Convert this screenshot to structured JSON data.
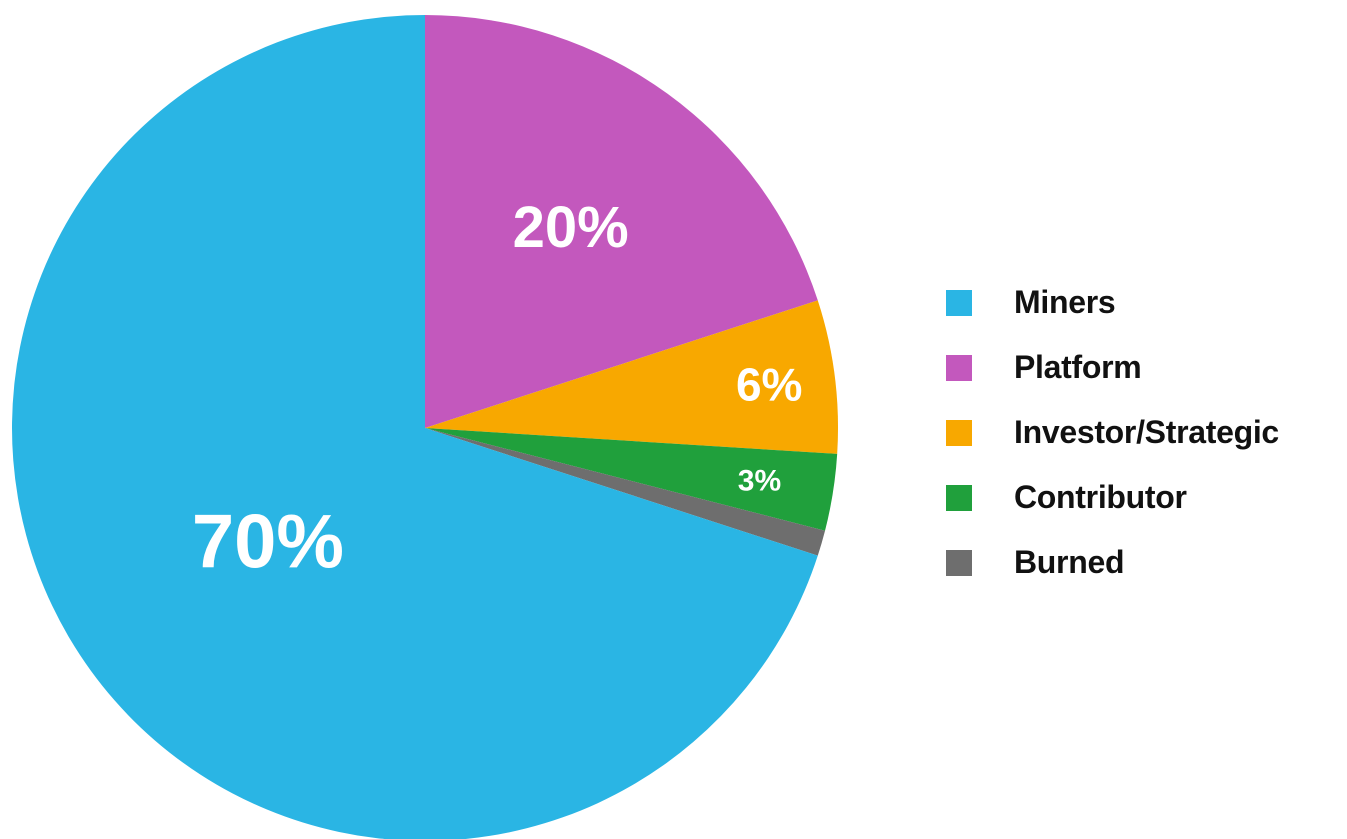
{
  "chart_data": {
    "type": "pie",
    "title": "",
    "start_angle_deg": 0,
    "direction": "clockwise",
    "legend_position": "right",
    "slices": [
      {
        "name": "Platform",
        "value": 20,
        "label": "20%",
        "color": "#c358bd"
      },
      {
        "name": "Investor/Strategic",
        "value": 6,
        "label": "6%",
        "color": "#f8a800"
      },
      {
        "name": "Contributor",
        "value": 3,
        "label": "3%",
        "color": "#20a03c"
      },
      {
        "name": "Burned",
        "value": 1,
        "label": "",
        "color": "#6e6e6e"
      },
      {
        "name": "Miners",
        "value": 70,
        "label": "70%",
        "color": "#2ab5e4"
      }
    ]
  },
  "legend": {
    "items": [
      {
        "label": "Miners",
        "color": "#2ab5e4"
      },
      {
        "label": "Platform",
        "color": "#c358bd"
      },
      {
        "label": "Investor/Strategic",
        "color": "#f8a800"
      },
      {
        "label": "Contributor",
        "color": "#20a03c"
      },
      {
        "label": "Burned",
        "color": "#6e6e6e"
      }
    ]
  }
}
